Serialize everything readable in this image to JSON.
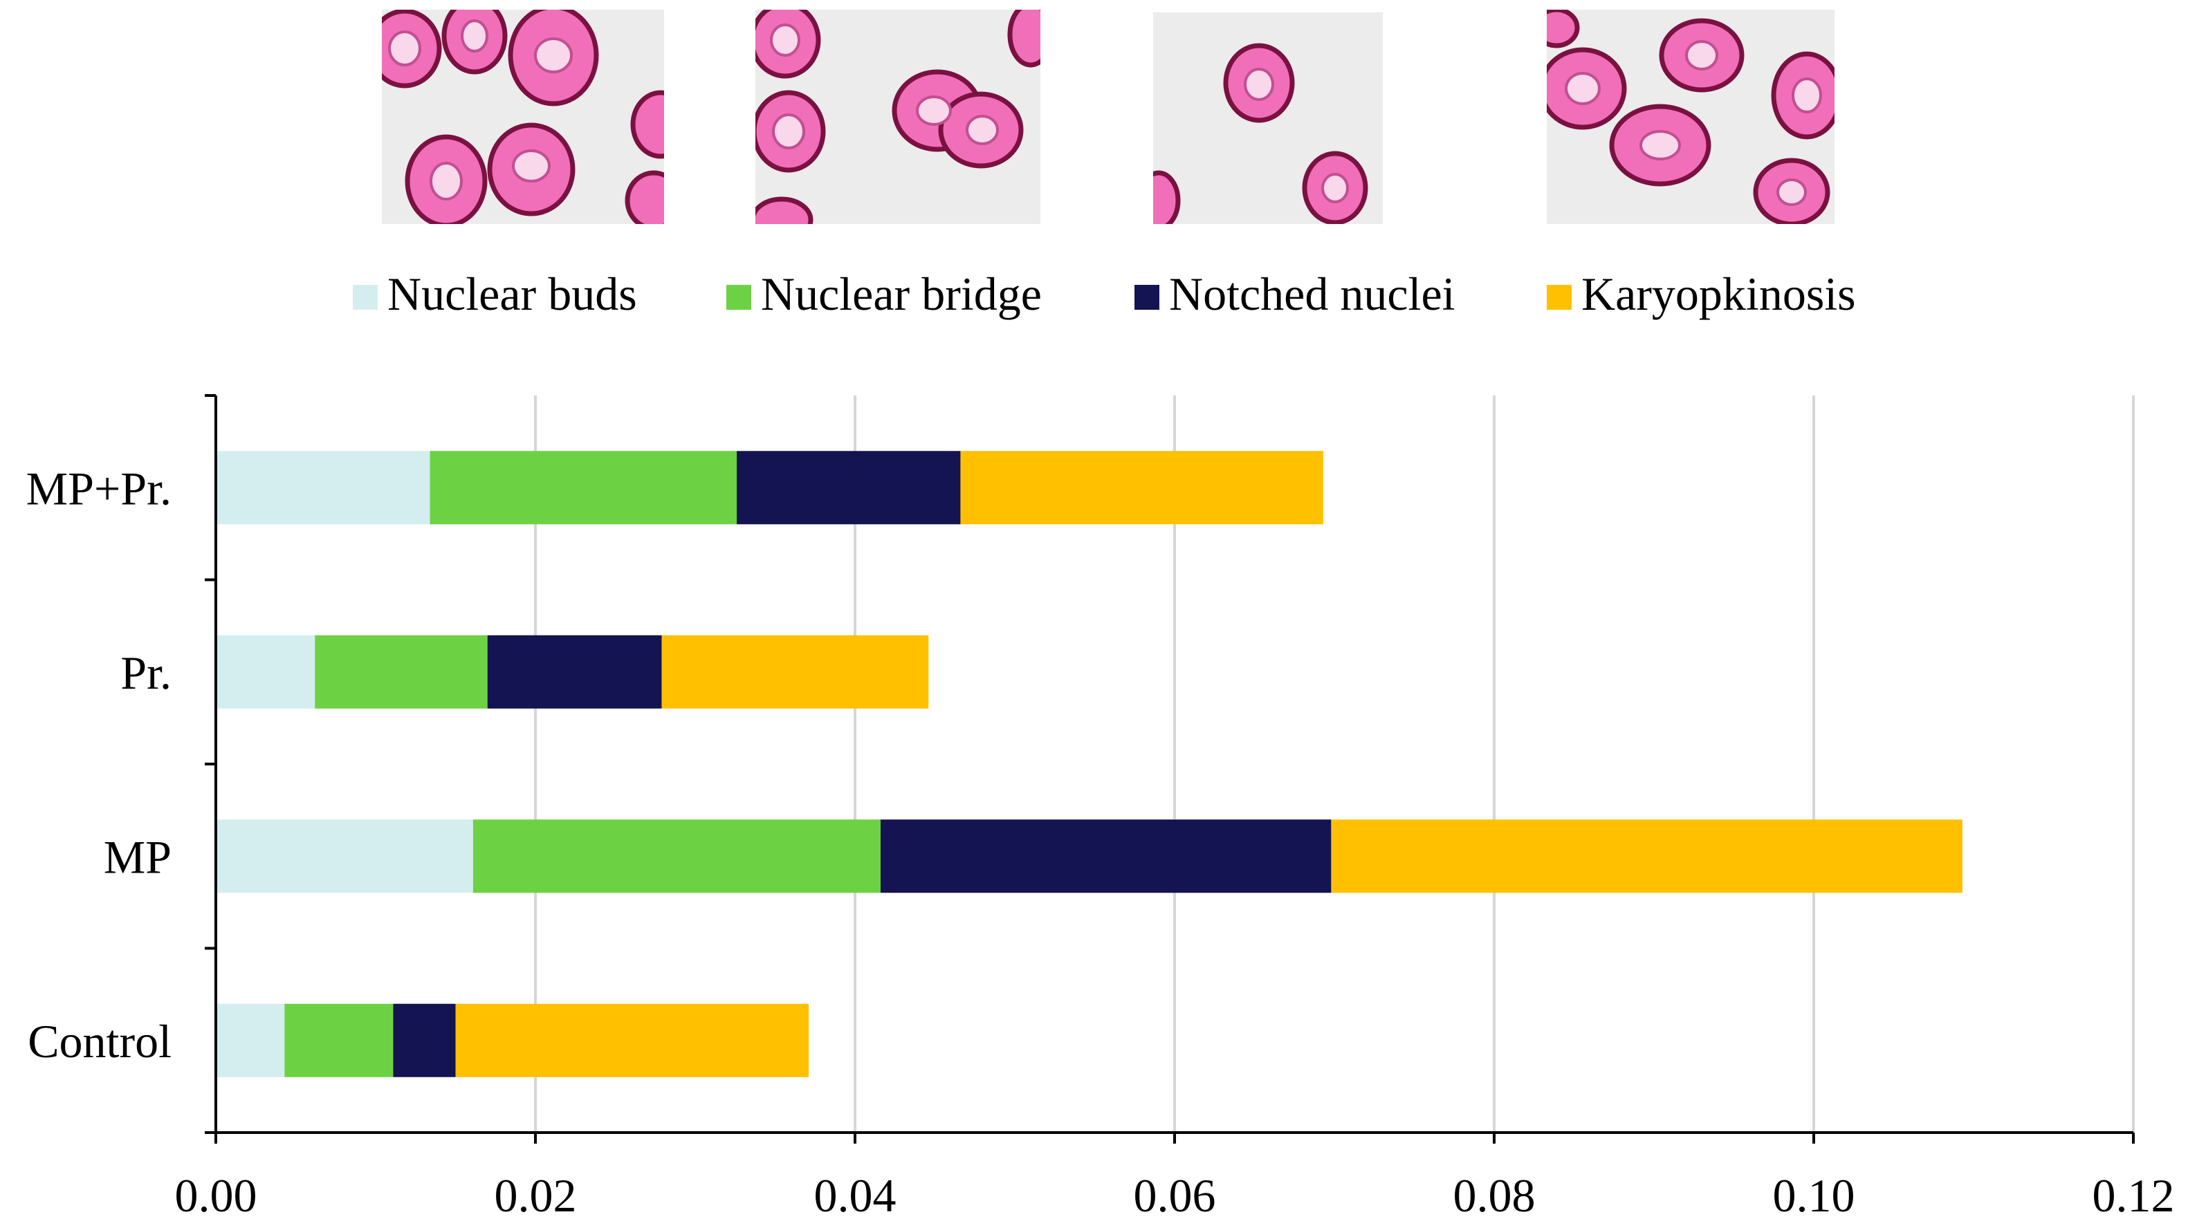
{
  "chart_data": {
    "type": "bar",
    "orientation": "horizontal",
    "stacked": true,
    "title": "",
    "xlabel": "",
    "ylabel": "",
    "categories": [
      "MP+Pr.",
      "Pr.",
      "MP",
      "Control"
    ],
    "series": [
      {
        "name": "Nuclear buds",
        "color": "#d4eef0",
        "values": [
          0.0134,
          0.0062,
          0.0161,
          0.0043
        ]
      },
      {
        "name": "Nuclear bridge",
        "color": "#6cd243",
        "values": [
          0.0192,
          0.0108,
          0.0255,
          0.0068
        ]
      },
      {
        "name": "Notched nuclei",
        "color": "#141452",
        "values": [
          0.014,
          0.0109,
          0.0282,
          0.0039
        ]
      },
      {
        "name": "Karyopkinosis",
        "color": "#ffc000",
        "values": [
          0.0227,
          0.0167,
          0.0395,
          0.0221
        ]
      }
    ],
    "xlim": [
      0,
      0.12
    ],
    "xticks": [
      "0.00",
      "0.02",
      "0.04",
      "0.06",
      "0.08",
      "0.10",
      "0.12"
    ],
    "grid": "vertical",
    "legend": "top"
  },
  "micrographs": [
    {
      "caption": "Nuclear buds"
    },
    {
      "caption": "Nuclear bridge"
    },
    {
      "caption": "Notched nuclei"
    },
    {
      "caption": "Karyopkinosis"
    }
  ]
}
